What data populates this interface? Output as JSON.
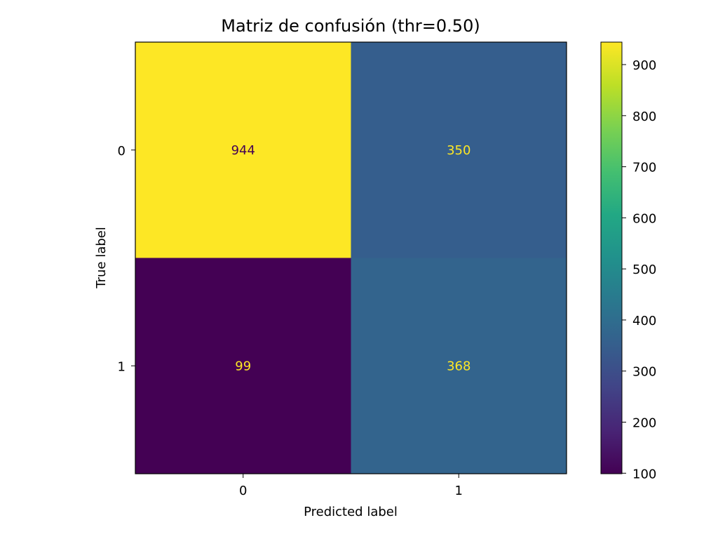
{
  "chart_data": {
    "type": "heatmap",
    "title": "Matriz de confusión (thr=0.50)",
    "xlabel": "Predicted label",
    "ylabel": "True label",
    "x_categories": [
      "0",
      "1"
    ],
    "y_categories": [
      "0",
      "1"
    ],
    "matrix": [
      [
        944,
        350
      ],
      [
        99,
        368
      ]
    ],
    "colormap": "viridis",
    "colorbar": {
      "range": [
        99,
        944
      ],
      "ticks": [
        100,
        200,
        300,
        400,
        500,
        600,
        700,
        800,
        900
      ]
    },
    "grid": false,
    "colors": {
      "low_text": "#fde725",
      "high_text": "#440154"
    }
  }
}
